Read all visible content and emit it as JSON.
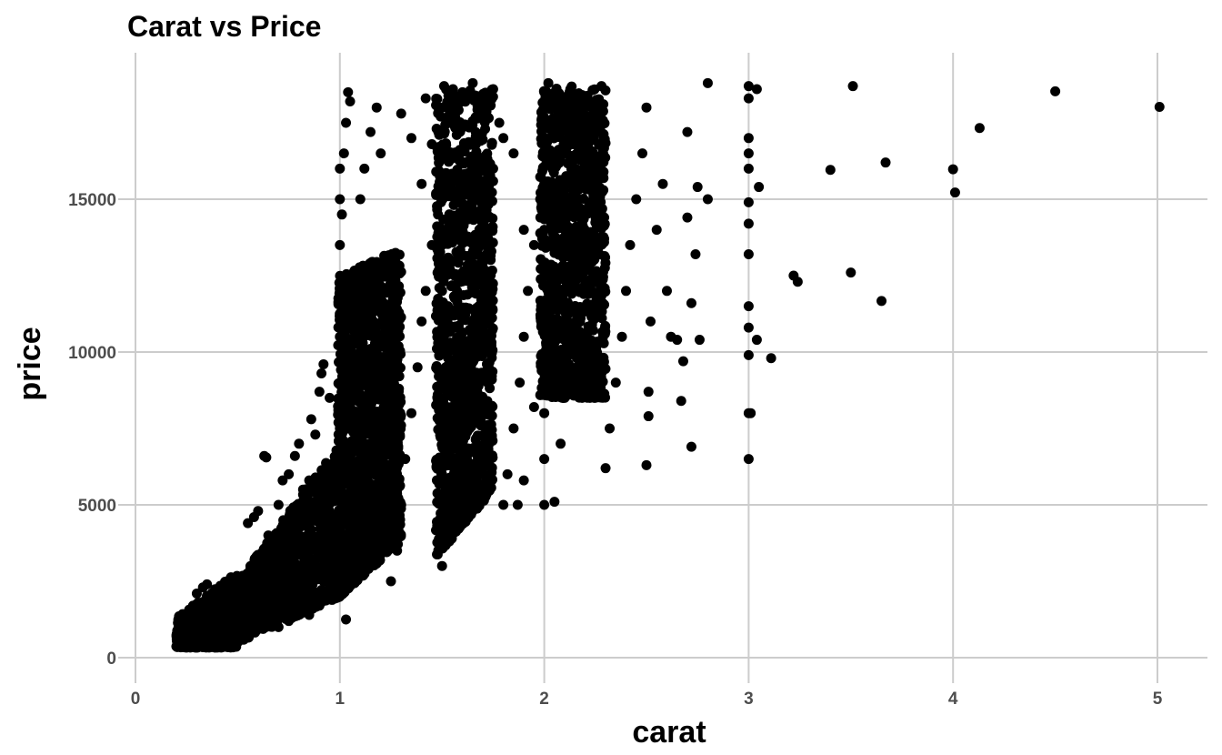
{
  "chart_data": {
    "type": "scatter",
    "title": "Carat vs Price",
    "xlabel": "carat",
    "ylabel": "price",
    "xlim": [
      0,
      5.2
    ],
    "ylim": [
      0,
      19000
    ],
    "x_ticks": [
      0,
      1,
      2,
      3,
      4,
      5
    ],
    "y_ticks": [
      0,
      5000,
      10000,
      15000
    ],
    "x_tick_labels": [
      "0",
      "1",
      "2",
      "3",
      "4",
      "5"
    ],
    "y_tick_labels": [
      "0",
      "5000",
      "10000",
      "15000"
    ],
    "grid": true,
    "legend": "none",
    "point_color": "#000000",
    "grid_color": "#cccccc",
    "points": [
      [
        0.2,
        367
      ],
      [
        0.22,
        400
      ],
      [
        0.25,
        450
      ],
      [
        0.28,
        520
      ],
      [
        0.3,
        600
      ],
      [
        0.32,
        700
      ],
      [
        0.35,
        800
      ],
      [
        0.38,
        950
      ],
      [
        0.4,
        1100
      ],
      [
        0.42,
        1300
      ],
      [
        0.45,
        1500
      ],
      [
        0.48,
        1700
      ],
      [
        0.3,
        2100
      ],
      [
        0.33,
        2300
      ],
      [
        0.35,
        2400
      ],
      [
        0.38,
        2000
      ],
      [
        0.4,
        1800
      ],
      [
        0.5,
        1600
      ],
      [
        0.52,
        2000
      ],
      [
        0.55,
        2300
      ],
      [
        0.58,
        2600
      ],
      [
        0.6,
        3000
      ],
      [
        0.62,
        3400
      ],
      [
        0.65,
        4000
      ],
      [
        0.55,
        4400
      ],
      [
        0.58,
        4600
      ],
      [
        0.6,
        4800
      ],
      [
        0.63,
        6600
      ],
      [
        0.64,
        6550
      ],
      [
        0.7,
        5000
      ],
      [
        0.72,
        5800
      ],
      [
        0.75,
        6000
      ],
      [
        0.78,
        6600
      ],
      [
        0.8,
        7000
      ],
      [
        0.82,
        5500
      ],
      [
        0.85,
        5800
      ],
      [
        0.86,
        7800
      ],
      [
        0.88,
        7300
      ],
      [
        0.9,
        8700
      ],
      [
        0.91,
        9300
      ],
      [
        0.92,
        9600
      ],
      [
        0.95,
        8500
      ],
      [
        0.7,
        1000
      ],
      [
        0.75,
        1200
      ],
      [
        0.8,
        1500
      ],
      [
        0.85,
        1400
      ],
      [
        0.9,
        1700
      ],
      [
        0.92,
        2500
      ],
      [
        0.95,
        2200
      ],
      [
        0.98,
        3000
      ],
      [
        1.0,
        3000
      ],
      [
        1.0,
        4500
      ],
      [
        1.0,
        6000
      ],
      [
        1.0,
        7500
      ],
      [
        1.0,
        9000
      ],
      [
        1.0,
        10500
      ],
      [
        1.0,
        12000
      ],
      [
        1.0,
        13500
      ],
      [
        1.0,
        15000
      ],
      [
        1.0,
        16000
      ],
      [
        1.01,
        14500
      ],
      [
        1.02,
        16500
      ],
      [
        1.03,
        17500
      ],
      [
        1.04,
        18500
      ],
      [
        1.05,
        18200
      ],
      [
        1.03,
        1250
      ],
      [
        1.05,
        2500
      ],
      [
        1.08,
        4000
      ],
      [
        1.1,
        5500
      ],
      [
        1.12,
        7000
      ],
      [
        1.15,
        8500
      ],
      [
        1.18,
        10000
      ],
      [
        1.2,
        11500
      ],
      [
        1.22,
        12500
      ],
      [
        1.25,
        13000
      ],
      [
        1.1,
        15000
      ],
      [
        1.12,
        16000
      ],
      [
        1.15,
        17200
      ],
      [
        1.18,
        18000
      ],
      [
        1.2,
        16500
      ],
      [
        1.25,
        2500
      ],
      [
        1.28,
        3500
      ],
      [
        1.3,
        5000
      ],
      [
        1.32,
        6500
      ],
      [
        1.35,
        8000
      ],
      [
        1.38,
        9500
      ],
      [
        1.4,
        11000
      ],
      [
        1.42,
        12000
      ],
      [
        1.45,
        13500
      ],
      [
        1.48,
        14500
      ],
      [
        1.35,
        17000
      ],
      [
        1.4,
        15500
      ],
      [
        1.45,
        16800
      ],
      [
        1.3,
        17800
      ],
      [
        1.42,
        18300
      ],
      [
        1.5,
        3000
      ],
      [
        1.5,
        4500
      ],
      [
        1.5,
        6000
      ],
      [
        1.5,
        7500
      ],
      [
        1.5,
        9000
      ],
      [
        1.5,
        10500
      ],
      [
        1.5,
        12000
      ],
      [
        1.5,
        13500
      ],
      [
        1.5,
        15000
      ],
      [
        1.5,
        16500
      ],
      [
        1.5,
        18000
      ],
      [
        1.51,
        18700
      ],
      [
        1.52,
        17500
      ],
      [
        1.55,
        4200
      ],
      [
        1.58,
        5500
      ],
      [
        1.6,
        7000
      ],
      [
        1.62,
        8500
      ],
      [
        1.65,
        10000
      ],
      [
        1.68,
        11500
      ],
      [
        1.7,
        13000
      ],
      [
        1.72,
        14500
      ],
      [
        1.75,
        16000
      ],
      [
        1.78,
        17500
      ],
      [
        1.6,
        18500
      ],
      [
        1.65,
        18800
      ],
      [
        1.7,
        18200
      ],
      [
        1.75,
        18600
      ],
      [
        1.8,
        17000
      ],
      [
        1.8,
        5000
      ],
      [
        1.82,
        6000
      ],
      [
        1.85,
        7500
      ],
      [
        1.88,
        9000
      ],
      [
        1.9,
        10500
      ],
      [
        1.92,
        12000
      ],
      [
        1.95,
        13500
      ],
      [
        1.98,
        15000
      ],
      [
        1.85,
        16500
      ],
      [
        1.9,
        14000
      ],
      [
        1.87,
        5000
      ],
      [
        1.9,
        5800
      ],
      [
        1.95,
        8200
      ],
      [
        2.0,
        5000
      ],
      [
        2.0,
        6500
      ],
      [
        2.0,
        8000
      ],
      [
        2.0,
        9500
      ],
      [
        2.0,
        11000
      ],
      [
        2.0,
        12500
      ],
      [
        2.0,
        14000
      ],
      [
        2.0,
        15500
      ],
      [
        2.0,
        17000
      ],
      [
        2.0,
        18500
      ],
      [
        2.02,
        18800
      ],
      [
        2.05,
        5100
      ],
      [
        2.08,
        7000
      ],
      [
        2.1,
        8500
      ],
      [
        2.12,
        10000
      ],
      [
        2.15,
        11500
      ],
      [
        2.18,
        13000
      ],
      [
        2.2,
        14500
      ],
      [
        2.22,
        16000
      ],
      [
        2.25,
        17500
      ],
      [
        2.28,
        18700
      ],
      [
        2.3,
        6200
      ],
      [
        2.32,
        7500
      ],
      [
        2.35,
        9000
      ],
      [
        2.38,
        10500
      ],
      [
        2.4,
        12000
      ],
      [
        2.42,
        13500
      ],
      [
        2.45,
        15000
      ],
      [
        2.48,
        16500
      ],
      [
        2.5,
        18000
      ],
      [
        2.5,
        6300
      ],
      [
        2.51,
        7900
      ],
      [
        2.51,
        8700
      ],
      [
        2.52,
        11000
      ],
      [
        2.55,
        14000
      ],
      [
        2.58,
        15500
      ],
      [
        2.6,
        12000
      ],
      [
        2.62,
        10500
      ],
      [
        2.65,
        10400
      ],
      [
        2.67,
        8400
      ],
      [
        2.68,
        9700
      ],
      [
        2.7,
        14400
      ],
      [
        2.72,
        6900
      ],
      [
        2.72,
        11600
      ],
      [
        2.75,
        15400
      ],
      [
        2.76,
        10400
      ],
      [
        2.8,
        15000
      ],
      [
        2.8,
        18800
      ],
      [
        2.74,
        13200
      ],
      [
        2.7,
        17200
      ],
      [
        3.0,
        6500
      ],
      [
        3.0,
        8000
      ],
      [
        3.0,
        9900
      ],
      [
        3.0,
        10800
      ],
      [
        3.0,
        11500
      ],
      [
        3.0,
        13200
      ],
      [
        3.0,
        14200
      ],
      [
        3.0,
        14900
      ],
      [
        3.0,
        16000
      ],
      [
        3.0,
        16500
      ],
      [
        3.0,
        17000
      ],
      [
        3.0,
        18300
      ],
      [
        3.0,
        18700
      ],
      [
        3.01,
        8000
      ],
      [
        3.04,
        18600
      ],
      [
        3.04,
        10400
      ],
      [
        3.05,
        15400
      ],
      [
        3.11,
        9800
      ],
      [
        3.22,
        12500
      ],
      [
        3.24,
        12300
      ],
      [
        3.4,
        15960
      ],
      [
        3.5,
        12600
      ],
      [
        3.51,
        18700
      ],
      [
        3.65,
        11670
      ],
      [
        3.67,
        16200
      ],
      [
        4.0,
        15980
      ],
      [
        4.01,
        15220
      ],
      [
        4.13,
        17330
      ],
      [
        4.5,
        18530
      ],
      [
        5.01,
        18020
      ]
    ]
  }
}
